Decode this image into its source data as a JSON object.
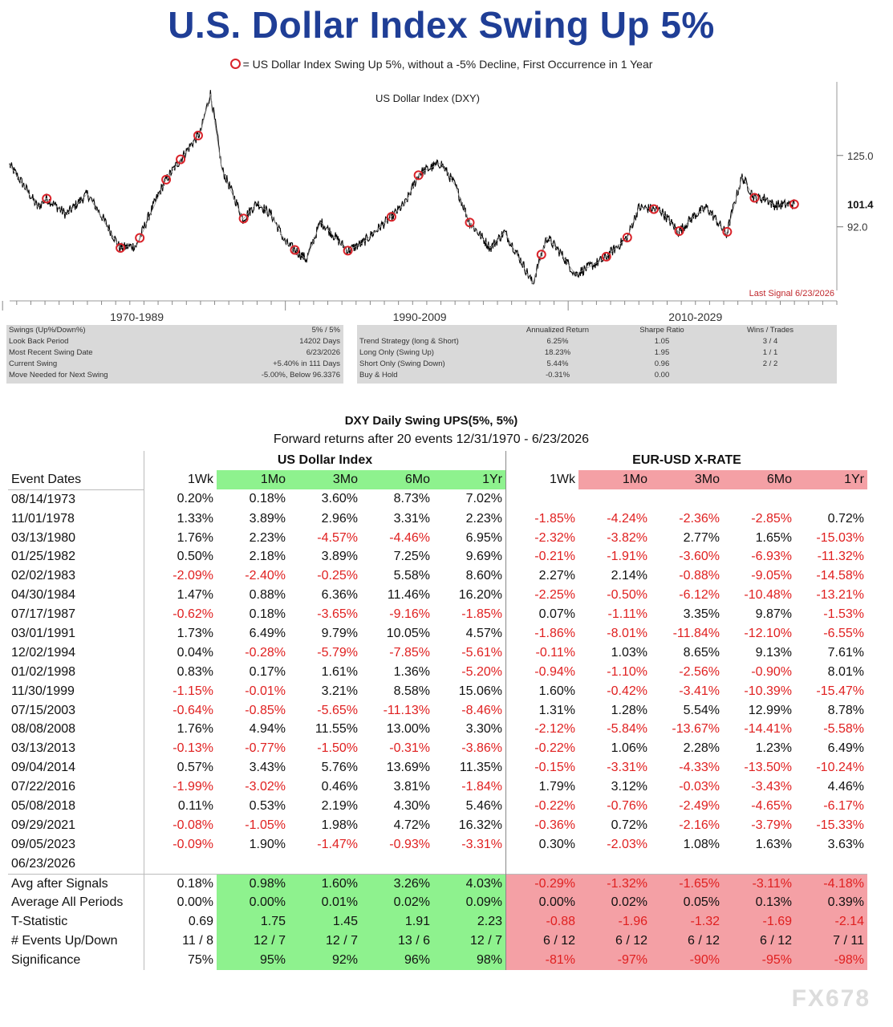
{
  "title": "U.S. Dollar Index Swing Up 5%",
  "legend_note": "= US Dollar Index  Swing Up 5%, without a -5% Decline, First Occurrence in 1 Year",
  "chart": {
    "title": "US Dollar Index (DXY)",
    "y_ticks": [
      "125.0",
      "92.0"
    ],
    "current_value": "101.4",
    "last_signal": "Last Signal 6/23/2026",
    "x_periods": [
      "1970-1989",
      "1990-2009",
      "2010-2029"
    ],
    "accent_color": "#d9232a"
  },
  "chart_data": {
    "type": "line",
    "title": "US Dollar Index (DXY)",
    "xlabel": "",
    "ylabel": "",
    "x": [
      1971,
      1973,
      1973.6,
      1975,
      1976.5,
      1978.8,
      1980,
      1982,
      1983,
      1984.5,
      1985.2,
      1986,
      1987.5,
      1988.5,
      1989.5,
      1990.5,
      1992,
      1993,
      1994.9,
      1996,
      1998,
      1999,
      2000,
      2001.5,
      2002.5,
      2003.5,
      2005,
      2006,
      2008,
      2009,
      2010,
      2011,
      2013,
      2014.7,
      2015.5,
      2017,
      2018.3,
      2019.5,
      2020.3,
      2021.7,
      2022.8,
      2023.7,
      2024.5,
      2025,
      2026.5
    ],
    "series": [
      {
        "values": [
          120,
          100,
          104,
          97,
          106,
          84,
          85,
          112,
          122,
          138,
          163,
          118,
          95,
          102,
          97,
          86,
          80,
          94,
          83,
          86,
          96,
          102,
          116,
          121,
          110,
          94,
          84,
          90,
          72,
          88,
          82,
          75,
          80,
          88,
          100,
          99,
          90,
          97,
          100,
          89,
          114,
          104,
          104,
          101,
          101.4
        ]
      }
    ],
    "signal_dates": [
      "08/14/1973",
      "11/01/1978",
      "03/13/1980",
      "01/25/1982",
      "02/02/1983",
      "04/30/1984",
      "07/17/1987",
      "03/01/1991",
      "12/02/1994",
      "01/02/1998",
      "11/30/1999",
      "07/15/2003",
      "08/08/2008",
      "03/13/2013",
      "09/04/2014",
      "07/22/2016",
      "05/08/2018",
      "09/29/2021",
      "09/05/2023",
      "06/23/2026"
    ],
    "y_ticks": [
      125.0,
      92.0
    ],
    "grid": false,
    "log_scale": true
  },
  "stats_left": [
    {
      "label": "Swings (Up%/Down%)",
      "value": "5% / 5%"
    },
    {
      "label": "Look Back Period",
      "value": "14202 Days"
    },
    {
      "label": "Most Recent Swing Date",
      "value": "6/23/2026"
    },
    {
      "label": "Current Swing",
      "value": "+5.40% in 111 Days"
    },
    {
      "label": "Move Needed for Next Swing",
      "value": "-5.00%, Below 96.3376"
    }
  ],
  "stats_right": {
    "headers": [
      "Annualized Return",
      "Sharpe Ratio",
      "Wins / Trades"
    ],
    "rows": [
      {
        "label": "Trend Strategy (long & Short)",
        "ret": "6.25%",
        "sharpe": "1.05",
        "wins": "3 / 4"
      },
      {
        "label": "Long Only (Swing Up)",
        "ret": "18.23%",
        "sharpe": "1.95",
        "wins": "1 / 1"
      },
      {
        "label": "Short Only (Swing Down)",
        "ret": "5.44%",
        "sharpe": "0.96",
        "wins": "2 / 2"
      },
      {
        "label": "Buy & Hold",
        "ret": "-0.31%",
        "sharpe": "0.00",
        "wins": ""
      }
    ]
  },
  "table": {
    "title": "DXY Daily Swing UPS(5%, 5%)",
    "subtitle": "Forward returns after 20 events 12/31/1970 - 6/23/2026",
    "group1": "US Dollar Index",
    "group2": "EUR-USD X-RATE",
    "date_header": "Event Dates",
    "periods": [
      "1Wk",
      "1Mo",
      "3Mo",
      "6Mo",
      "1Yr"
    ],
    "rows": [
      {
        "date": "08/14/1973",
        "dxy": [
          "0.20%",
          "0.18%",
          "3.60%",
          "8.73%",
          "7.02%"
        ],
        "eur": [
          "",
          "",
          "",
          "",
          ""
        ]
      },
      {
        "date": "11/01/1978",
        "dxy": [
          "1.33%",
          "3.89%",
          "2.96%",
          "3.31%",
          "2.23%"
        ],
        "eur": [
          "-1.85%",
          "-4.24%",
          "-2.36%",
          "-2.85%",
          "0.72%"
        ]
      },
      {
        "date": "03/13/1980",
        "dxy": [
          "1.76%",
          "2.23%",
          "-4.57%",
          "-4.46%",
          "6.95%"
        ],
        "eur": [
          "-2.32%",
          "-3.82%",
          "2.77%",
          "1.65%",
          "-15.03%"
        ]
      },
      {
        "date": "01/25/1982",
        "dxy": [
          "0.50%",
          "2.18%",
          "3.89%",
          "7.25%",
          "9.69%"
        ],
        "eur": [
          "-0.21%",
          "-1.91%",
          "-3.60%",
          "-6.93%",
          "-11.32%"
        ]
      },
      {
        "date": "02/02/1983",
        "dxy": [
          "-2.09%",
          "-2.40%",
          "-0.25%",
          "5.58%",
          "8.60%"
        ],
        "eur": [
          "2.27%",
          "2.14%",
          "-0.88%",
          "-9.05%",
          "-14.58%"
        ]
      },
      {
        "date": "04/30/1984",
        "dxy": [
          "1.47%",
          "0.88%",
          "6.36%",
          "11.46%",
          "16.20%"
        ],
        "eur": [
          "-2.25%",
          "-0.50%",
          "-6.12%",
          "-10.48%",
          "-13.21%"
        ]
      },
      {
        "date": "07/17/1987",
        "dxy": [
          "-0.62%",
          "0.18%",
          "-3.65%",
          "-9.16%",
          "-1.85%"
        ],
        "eur": [
          "0.07%",
          "-1.11%",
          "3.35%",
          "9.87%",
          "-1.53%"
        ]
      },
      {
        "date": "03/01/1991",
        "dxy": [
          "1.73%",
          "6.49%",
          "9.79%",
          "10.05%",
          "4.57%"
        ],
        "eur": [
          "-1.86%",
          "-8.01%",
          "-11.84%",
          "-12.10%",
          "-6.55%"
        ]
      },
      {
        "date": "12/02/1994",
        "dxy": [
          "0.04%",
          "-0.28%",
          "-5.79%",
          "-7.85%",
          "-5.61%"
        ],
        "eur": [
          "-0.11%",
          "1.03%",
          "8.65%",
          "9.13%",
          "7.61%"
        ]
      },
      {
        "date": "01/02/1998",
        "dxy": [
          "0.83%",
          "0.17%",
          "1.61%",
          "1.36%",
          "-5.20%"
        ],
        "eur": [
          "-0.94%",
          "-1.10%",
          "-2.56%",
          "-0.90%",
          "8.01%"
        ]
      },
      {
        "date": "11/30/1999",
        "dxy": [
          "-1.15%",
          "-0.01%",
          "3.21%",
          "8.58%",
          "15.06%"
        ],
        "eur": [
          "1.60%",
          "-0.42%",
          "-3.41%",
          "-10.39%",
          "-15.47%"
        ]
      },
      {
        "date": "07/15/2003",
        "dxy": [
          "-0.64%",
          "-0.85%",
          "-5.65%",
          "-11.13%",
          "-8.46%"
        ],
        "eur": [
          "1.31%",
          "1.28%",
          "5.54%",
          "12.99%",
          "8.78%"
        ]
      },
      {
        "date": "08/08/2008",
        "dxy": [
          "1.76%",
          "4.94%",
          "11.55%",
          "13.00%",
          "3.30%"
        ],
        "eur": [
          "-2.12%",
          "-5.84%",
          "-13.67%",
          "-14.41%",
          "-5.58%"
        ]
      },
      {
        "date": "03/13/2013",
        "dxy": [
          "-0.13%",
          "-0.77%",
          "-1.50%",
          "-0.31%",
          "-3.86%"
        ],
        "eur": [
          "-0.22%",
          "1.06%",
          "2.28%",
          "1.23%",
          "6.49%"
        ]
      },
      {
        "date": "09/04/2014",
        "dxy": [
          "0.57%",
          "3.43%",
          "5.76%",
          "13.69%",
          "11.35%"
        ],
        "eur": [
          "-0.15%",
          "-3.31%",
          "-4.33%",
          "-13.50%",
          "-10.24%"
        ]
      },
      {
        "date": "07/22/2016",
        "dxy": [
          "-1.99%",
          "-3.02%",
          "0.46%",
          "3.81%",
          "-1.84%"
        ],
        "eur": [
          "1.79%",
          "3.12%",
          "-0.03%",
          "-3.43%",
          "4.46%"
        ]
      },
      {
        "date": "05/08/2018",
        "dxy": [
          "0.11%",
          "0.53%",
          "2.19%",
          "4.30%",
          "5.46%"
        ],
        "eur": [
          "-0.22%",
          "-0.76%",
          "-2.49%",
          "-4.65%",
          "-6.17%"
        ]
      },
      {
        "date": "09/29/2021",
        "dxy": [
          "-0.08%",
          "-1.05%",
          "1.98%",
          "4.72%",
          "16.32%"
        ],
        "eur": [
          "-0.36%",
          "0.72%",
          "-2.16%",
          "-3.79%",
          "-15.33%"
        ]
      },
      {
        "date": "09/05/2023",
        "dxy": [
          "-0.09%",
          "1.90%",
          "-1.47%",
          "-0.93%",
          "-3.31%"
        ],
        "eur": [
          "0.30%",
          "-2.03%",
          "1.08%",
          "1.63%",
          "3.63%"
        ]
      },
      {
        "date": "06/23/2026",
        "dxy": [
          "",
          "",
          "",
          "",
          ""
        ],
        "eur": [
          "",
          "",
          "",
          "",
          ""
        ]
      }
    ],
    "summary": [
      {
        "label": "Avg after Signals",
        "dxy": [
          "0.18%",
          "0.98%",
          "1.60%",
          "3.26%",
          "4.03%"
        ],
        "eur": [
          "-0.29%",
          "-1.32%",
          "-1.65%",
          "-3.11%",
          "-4.18%"
        ]
      },
      {
        "label": "Average All Periods",
        "dxy": [
          "0.00%",
          "0.00%",
          "0.01%",
          "0.02%",
          "0.09%"
        ],
        "eur": [
          "0.00%",
          "0.02%",
          "0.05%",
          "0.13%",
          "0.39%"
        ]
      },
      {
        "label": "T-Statistic",
        "dxy": [
          "0.69",
          "1.75",
          "1.45",
          "1.91",
          "2.23"
        ],
        "eur": [
          "-0.88",
          "-1.96",
          "-1.32",
          "-1.69",
          "-2.14"
        ]
      },
      {
        "label": "# Events Up/Down",
        "dxy": [
          "11 / 8",
          "12 / 7",
          "12 / 7",
          "13 / 6",
          "12 / 7"
        ],
        "eur": [
          "6 / 12",
          "6 / 12",
          "6 / 12",
          "6 / 12",
          "7 / 11"
        ]
      },
      {
        "label": "Significance",
        "dxy": [
          "75%",
          "95%",
          "92%",
          "96%",
          "98%"
        ],
        "eur": [
          "-81%",
          "-97%",
          "-90%",
          "-95%",
          "-98%"
        ]
      }
    ],
    "positive_highlight": "#8ef28e",
    "negative_highlight": "#f4a0a5",
    "negative_text": "#e02020"
  },
  "watermark": "FX678"
}
